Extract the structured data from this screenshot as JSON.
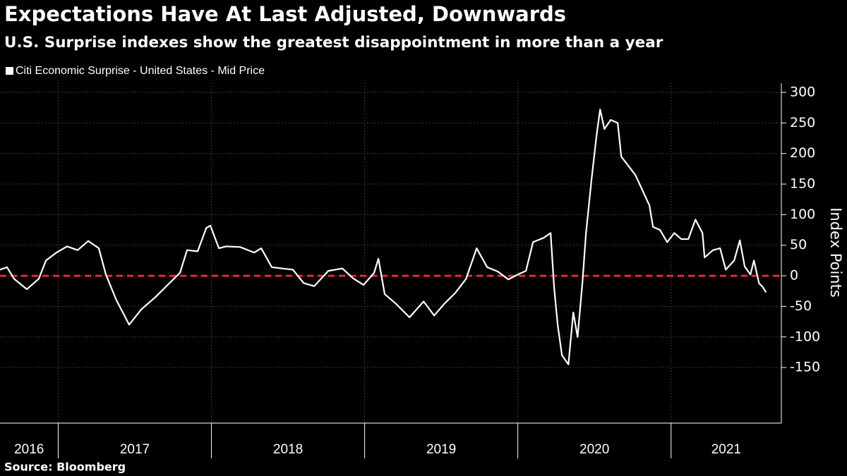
{
  "chart_data": {
    "type": "line",
    "title": "Expectations Have At Last Adjusted, Downwards",
    "subtitle": "U.S. Surprise indexes show the greatest disappointment in more than a year",
    "y_axis_label": "Index Points",
    "source": "Source: Bloomberg",
    "x": [
      2016.62,
      2016.666,
      2016.712,
      2016.795,
      2016.873,
      2016.92,
      2016.989,
      2017.058,
      2017.127,
      2017.196,
      2017.265,
      2017.311,
      2017.38,
      2017.463,
      2017.542,
      2017.634,
      2017.726,
      2017.795,
      2017.841,
      2017.91,
      2017.966,
      2017.993,
      2018.049,
      2018.095,
      2018.187,
      2018.279,
      2018.325,
      2018.394,
      2018.463,
      2018.532,
      2018.602,
      2018.671,
      2018.763,
      2018.855,
      2018.924,
      2018.993,
      2019.062,
      2019.09,
      2019.131,
      2019.201,
      2019.293,
      2019.385,
      2019.454,
      2019.523,
      2019.592,
      2019.662,
      2019.731,
      2019.8,
      2019.869,
      2019.938,
      2020.007,
      2020.053,
      2020.099,
      2020.168,
      2020.214,
      2020.237,
      2020.26,
      2020.288,
      2020.33,
      2020.362,
      2020.39,
      2020.422,
      2020.445,
      2020.482,
      2020.514,
      2020.537,
      2020.565,
      2020.606,
      2020.652,
      2020.675,
      2020.721,
      2020.767,
      2020.813,
      2020.859,
      2020.882,
      2020.928,
      2020.975,
      2021.021,
      2021.067,
      2021.113,
      2021.159,
      2021.205,
      2021.219,
      2021.274,
      2021.32,
      2021.357,
      2021.412,
      2021.449,
      2021.481,
      2021.518,
      2021.541,
      2021.574,
      2021.597,
      2021.62
    ],
    "series": [
      {
        "name": "Citi Economic Surprise - United States - Mid Price",
        "color": "#ffffff",
        "values": [
          10,
          14,
          -5,
          -22,
          -5,
          25,
          38,
          48,
          42,
          57,
          45,
          2,
          -40,
          -80,
          -55,
          -35,
          -12,
          5,
          42,
          40,
          78,
          82,
          45,
          48,
          47,
          38,
          45,
          14,
          12,
          10,
          -12,
          -17,
          8,
          12,
          -4,
          -15,
          5,
          28,
          -30,
          -45,
          -68,
          -42,
          -65,
          -45,
          -28,
          -5,
          45,
          14,
          7,
          -6,
          3,
          8,
          55,
          62,
          70,
          -20,
          -80,
          -130,
          -145,
          -60,
          -100,
          -10,
          70,
          160,
          230,
          272,
          240,
          255,
          250,
          195,
          180,
          165,
          140,
          115,
          80,
          75,
          55,
          70,
          60,
          60,
          92,
          70,
          30,
          42,
          45,
          10,
          25,
          58,
          15,
          2,
          25,
          -12,
          -18,
          -27
        ]
      }
    ],
    "xlim": [
      2016.62,
      2021.72
    ],
    "xticks": [
      2016,
      2017,
      2018,
      2019,
      2020,
      2021
    ],
    "ylim": [
      -241,
      315
    ],
    "yticks": [
      -150,
      -100,
      -50,
      0,
      50,
      100,
      150,
      200,
      250,
      300
    ],
    "reference_line": {
      "value": 0,
      "color": "#e8273c"
    },
    "grid": true
  }
}
